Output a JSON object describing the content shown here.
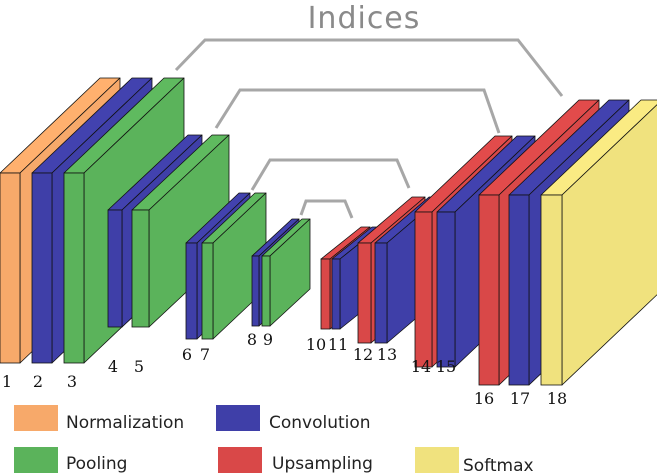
{
  "title": "Indices",
  "colors": {
    "normalization": "#F7A96A",
    "convolution": "#3F3FA8",
    "pooling": "#5BB35B",
    "upsampling": "#D94848",
    "softmax": "#F0E27E",
    "connector": "#a7a7a7"
  },
  "legend": [
    {
      "key": "normalization",
      "label": "Normalization"
    },
    {
      "key": "convolution",
      "label": "Convolution"
    },
    {
      "key": "pooling",
      "label": "Pooling"
    },
    {
      "key": "upsampling",
      "label": "Upsampling"
    },
    {
      "key": "softmax",
      "label": "Softmax"
    }
  ],
  "layers": [
    {
      "n": "1",
      "type": "normalization"
    },
    {
      "n": "2",
      "type": "convolution"
    },
    {
      "n": "3",
      "type": "pooling"
    },
    {
      "n": "4",
      "type": "convolution"
    },
    {
      "n": "5",
      "type": "pooling"
    },
    {
      "n": "6",
      "type": "convolution"
    },
    {
      "n": "7",
      "type": "pooling"
    },
    {
      "n": "8",
      "type": "convolution"
    },
    {
      "n": "9",
      "type": "pooling"
    },
    {
      "n": "10",
      "type": "upsampling"
    },
    {
      "n": "11",
      "type": "convolution"
    },
    {
      "n": "12",
      "type": "upsampling"
    },
    {
      "n": "13",
      "type": "convolution"
    },
    {
      "n": "14",
      "type": "upsampling"
    },
    {
      "n": "15",
      "type": "convolution"
    },
    {
      "n": "16",
      "type": "upsampling"
    },
    {
      "n": "17",
      "type": "convolution"
    },
    {
      "n": "18",
      "type": "softmax"
    }
  ]
}
